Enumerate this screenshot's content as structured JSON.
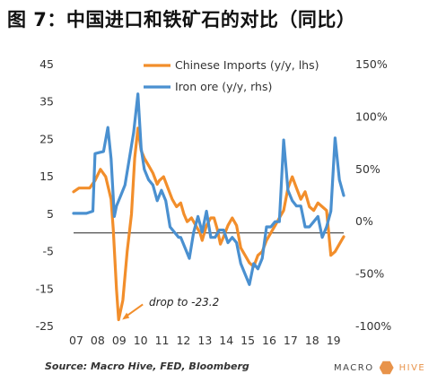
{
  "header": {
    "title": "图 7：中国进口和铁矿石的对比（同比）"
  },
  "chart_data": {
    "type": "line",
    "x_ticks": [
      "07",
      "08",
      "09",
      "10",
      "11",
      "12",
      "13",
      "14",
      "15",
      "16",
      "17",
      "18",
      "19"
    ],
    "y_left": {
      "ticks": [
        "45",
        "35",
        "25",
        "15",
        "5",
        "-5",
        "-15",
        "-25"
      ],
      "range": [
        -25,
        45
      ]
    },
    "y_right": {
      "ticks": [
        "150%",
        "100%",
        "50%",
        "0%",
        "-50%",
        "-100%"
      ],
      "range": [
        -100,
        150
      ]
    },
    "series": [
      {
        "name": "Chinese Imports (y/y, lhs)",
        "axis": "left",
        "color": "#F28E2B",
        "x": [
          2007.0,
          2007.25,
          2007.5,
          2007.75,
          2008.0,
          2008.25,
          2008.5,
          2008.75,
          2008.85,
          2009.0,
          2009.1,
          2009.3,
          2009.5,
          2009.7,
          2009.85,
          2010.0,
          2010.15,
          2010.3,
          2010.5,
          2010.7,
          2010.9,
          2011.0,
          2011.2,
          2011.4,
          2011.6,
          2011.8,
          2012.0,
          2012.15,
          2012.3,
          2012.5,
          2012.7,
          2012.9,
          2013.0,
          2013.2,
          2013.4,
          2013.55,
          2013.7,
          2013.85,
          2014.0,
          2014.2,
          2014.4,
          2014.6,
          2014.8,
          2015.0,
          2015.2,
          2015.4,
          2015.6,
          2015.8,
          2016.0,
          2016.2,
          2016.4,
          2016.6,
          2016.8,
          2017.0,
          2017.2,
          2017.4,
          2017.6,
          2017.8,
          2018.0,
          2018.2,
          2018.4,
          2018.6,
          2018.8,
          2019.0,
          2019.2,
          2019.4,
          2019.6
        ],
        "y": [
          11,
          12,
          12,
          12,
          14,
          17,
          15,
          9,
          1,
          -15,
          -23.2,
          -18,
          -5,
          5,
          20,
          28,
          22,
          20,
          18,
          16,
          13,
          14,
          15,
          12,
          9,
          7,
          8,
          5,
          3,
          4,
          2,
          0,
          -2,
          2,
          4,
          4,
          1,
          -3,
          -1,
          2,
          4,
          2,
          -4,
          -6,
          -8,
          -9,
          -6,
          -5,
          -2,
          0,
          2,
          4,
          6,
          12,
          15,
          12,
          9,
          11,
          7,
          6,
          8,
          7,
          6,
          -6,
          -5,
          -3,
          -1
        ]
      },
      {
        "name": "Iron ore (y/y, rhs)",
        "axis": "right",
        "color": "#4A90D0",
        "x": [
          2007.0,
          2007.3,
          2007.6,
          2007.9,
          2008.0,
          2008.2,
          2008.4,
          2008.6,
          2008.75,
          2008.9,
          2009.0,
          2009.2,
          2009.4,
          2009.6,
          2009.8,
          2010.0,
          2010.15,
          2010.3,
          2010.5,
          2010.7,
          2010.9,
          2011.1,
          2011.3,
          2011.5,
          2011.7,
          2011.9,
          2012.0,
          2012.2,
          2012.4,
          2012.6,
          2012.8,
          2013.0,
          2013.2,
          2013.4,
          2013.6,
          2013.8,
          2014.0,
          2014.2,
          2014.4,
          2014.6,
          2014.8,
          2015.0,
          2015.2,
          2015.4,
          2015.6,
          2015.8,
          2016.0,
          2016.2,
          2016.4,
          2016.6,
          2016.8,
          2017.0,
          2017.2,
          2017.4,
          2017.6,
          2017.8,
          2018.0,
          2018.2,
          2018.4,
          2018.6,
          2018.8,
          2019.0,
          2019.2,
          2019.4,
          2019.6
        ],
        "y": [
          8,
          8,
          8,
          10,
          65,
          66,
          67,
          90,
          60,
          5,
          15,
          25,
          35,
          60,
          85,
          122,
          70,
          50,
          40,
          35,
          20,
          30,
          20,
          -5,
          -10,
          -15,
          -15,
          -25,
          -35,
          -10,
          5,
          -10,
          10,
          -15,
          -15,
          -8,
          -8,
          -20,
          -15,
          -20,
          -40,
          -50,
          -60,
          -40,
          -45,
          -35,
          -5,
          -5,
          0,
          0,
          78,
          30,
          20,
          15,
          15,
          -5,
          -5,
          0,
          5,
          -15,
          -5,
          10,
          80,
          40,
          25
        ]
      }
    ],
    "annotations": [
      {
        "text": "drop to -23.2",
        "x": 2009.1,
        "y": -23.2
      }
    ]
  },
  "footer": {
    "source": "Source: Macro Hive, FED, Bloomberg",
    "logo_left": "MACRO",
    "logo_right": "HIVE"
  }
}
